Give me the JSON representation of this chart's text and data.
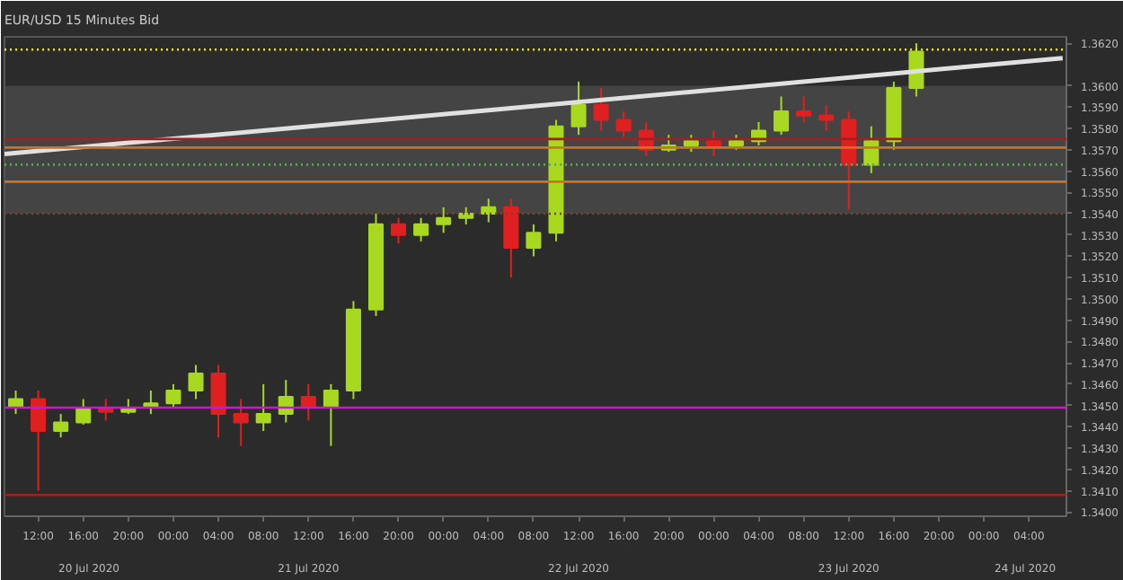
{
  "chart_data": {
    "type": "candlestick",
    "title": "EUR/USD 15 Minutes Bid",
    "x": [
      "2020-07-20T10:00",
      "2020-07-20T12:00",
      "2020-07-20T14:00",
      "2020-07-20T16:00",
      "2020-07-20T18:00",
      "2020-07-20T20:00",
      "2020-07-20T22:00",
      "2020-07-21T00:00",
      "2020-07-21T02:00",
      "2020-07-21T04:00",
      "2020-07-21T06:00",
      "2020-07-21T08:00",
      "2020-07-21T10:00",
      "2020-07-21T12:00",
      "2020-07-21T14:00",
      "2020-07-21T16:00",
      "2020-07-21T18:00",
      "2020-07-21T20:00",
      "2020-07-21T22:00",
      "2020-07-22T00:00",
      "2020-07-22T02:00",
      "2020-07-22T04:00",
      "2020-07-22T06:00",
      "2020-07-22T08:00",
      "2020-07-22T10:00",
      "2020-07-22T12:00",
      "2020-07-22T14:00",
      "2020-07-22T16:00",
      "2020-07-22T18:00",
      "2020-07-22T20:00",
      "2020-07-22T22:00",
      "2020-07-23T00:00",
      "2020-07-23T02:00",
      "2020-07-23T04:00",
      "2020-07-23T06:00",
      "2020-07-23T08:00",
      "2020-07-23T10:00",
      "2020-07-23T12:00",
      "2020-07-23T14:00",
      "2020-07-23T16:00",
      "2020-07-23T18:00"
    ],
    "ohlc": [
      [
        1.3449,
        1.3457,
        1.3446,
        1.3453
      ],
      [
        1.3453,
        1.3457,
        1.341,
        1.3438
      ],
      [
        1.3438,
        1.3446,
        1.3435,
        1.3442
      ],
      [
        1.3442,
        1.3453,
        1.3441,
        1.3449
      ],
      [
        1.3449,
        1.3453,
        1.3443,
        1.3447
      ],
      [
        1.3447,
        1.3453,
        1.3446,
        1.3449
      ],
      [
        1.3449,
        1.3457,
        1.3446,
        1.3451
      ],
      [
        1.3451,
        1.346,
        1.3449,
        1.3457
      ],
      [
        1.3457,
        1.3469,
        1.3453,
        1.3465
      ],
      [
        1.3465,
        1.3469,
        1.3435,
        1.3446
      ],
      [
        1.3446,
        1.3453,
        1.3431,
        1.3442
      ],
      [
        1.3442,
        1.346,
        1.3438,
        1.3446
      ],
      [
        1.3446,
        1.3462,
        1.3442,
        1.3454
      ],
      [
        1.3454,
        1.346,
        1.3443,
        1.3449
      ],
      [
        1.3449,
        1.346,
        1.3431,
        1.3457
      ],
      [
        1.3457,
        1.3499,
        1.3453,
        1.3495
      ],
      [
        1.3495,
        1.354,
        1.3492,
        1.3535
      ],
      [
        1.3535,
        1.3538,
        1.3526,
        1.353
      ],
      [
        1.353,
        1.3538,
        1.3527,
        1.3535
      ],
      [
        1.3535,
        1.3543,
        1.3531,
        1.3538
      ],
      [
        1.3538,
        1.3543,
        1.3535,
        1.354
      ],
      [
        1.354,
        1.3547,
        1.3536,
        1.3543
      ],
      [
        1.3543,
        1.3547,
        1.351,
        1.3524
      ],
      [
        1.3524,
        1.3535,
        1.352,
        1.3531
      ],
      [
        1.3531,
        1.3584,
        1.3527,
        1.3581
      ],
      [
        1.3581,
        1.3602,
        1.3577,
        1.3591
      ],
      [
        1.3591,
        1.3599,
        1.3579,
        1.3584
      ],
      [
        1.3584,
        1.3588,
        1.3576,
        1.3579
      ],
      [
        1.3579,
        1.3583,
        1.3567,
        1.357
      ],
      [
        1.357,
        1.3577,
        1.3569,
        1.3572
      ],
      [
        1.3572,
        1.3577,
        1.3569,
        1.3574
      ],
      [
        1.3574,
        1.3579,
        1.3567,
        1.3572
      ],
      [
        1.3572,
        1.3577,
        1.357,
        1.3574
      ],
      [
        1.3574,
        1.3583,
        1.3572,
        1.3579
      ],
      [
        1.3579,
        1.3595,
        1.3577,
        1.3588
      ],
      [
        1.3588,
        1.3595,
        1.3583,
        1.3586
      ],
      [
        1.3586,
        1.3591,
        1.3579,
        1.3584
      ],
      [
        1.3584,
        1.3588,
        1.3542,
        1.3563
      ],
      [
        1.3563,
        1.3581,
        1.3559,
        1.3574
      ],
      [
        1.3574,
        1.3602,
        1.357,
        1.3599
      ],
      [
        1.3599,
        1.362,
        1.3595,
        1.3616
      ]
    ],
    "colors": [
      "#a8d820",
      "#e02020",
      "#a8d820",
      "#a8d820",
      "#e02020",
      "#a8d820",
      "#a8d820",
      "#a8d820",
      "#a8d820",
      "#e02020",
      "#e02020",
      "#a8d820",
      "#a8d820",
      "#e02020",
      "#a8d820",
      "#a8d820",
      "#a8d820",
      "#e02020",
      "#a8d820",
      "#a8d820",
      "#a8d820",
      "#a8d820",
      "#e02020",
      "#a8d820",
      "#a8d820",
      "#a8d820",
      "#e02020",
      "#e02020",
      "#e02020",
      "#a8d820",
      "#a8d820",
      "#e02020",
      "#a8d820",
      "#a8d820",
      "#a8d820",
      "#e02020",
      "#e02020",
      "#e02020",
      "#a8d820",
      "#a8d820",
      "#a8d820"
    ],
    "series": [
      {
        "type": "line",
        "color": "#e0e0e0",
        "x": [
          "2020-07-20T09:00",
          "2020-07-24T07:00"
        ],
        "values": [
          1.3568,
          1.3613
        ]
      }
    ],
    "xlim": [
      "2020-07-20T09:00",
      "2020-07-24T07:20"
    ],
    "ylim": [
      1.3398,
      1.3623
    ],
    "xticks": [
      {
        "value": "2020-07-20T12:00",
        "label": "12:00"
      },
      {
        "value": "2020-07-20T16:00",
        "label": "16:00"
      },
      {
        "value": "2020-07-20T20:00",
        "label": "20:00"
      },
      {
        "value": "2020-07-21T00:00",
        "label": "00:00"
      },
      {
        "value": "2020-07-21T04:00",
        "label": "04:00"
      },
      {
        "value": "2020-07-21T08:00",
        "label": "08:00"
      },
      {
        "value": "2020-07-21T12:00",
        "label": "12:00"
      },
      {
        "value": "2020-07-21T16:00",
        "label": "16:00"
      },
      {
        "value": "2020-07-21T20:00",
        "label": "20:00"
      },
      {
        "value": "2020-07-22T00:00",
        "label": "00:00"
      },
      {
        "value": "2020-07-22T04:00",
        "label": "04:00"
      },
      {
        "value": "2020-07-22T08:00",
        "label": "08:00"
      },
      {
        "value": "2020-07-22T12:00",
        "label": "12:00"
      },
      {
        "value": "2020-07-22T16:00",
        "label": "16:00"
      },
      {
        "value": "2020-07-22T20:00",
        "label": "20:00"
      },
      {
        "value": "2020-07-23T00:00",
        "label": "00:00"
      },
      {
        "value": "2020-07-23T04:00",
        "label": "04:00"
      },
      {
        "value": "2020-07-23T08:00",
        "label": "08:00"
      },
      {
        "value": "2020-07-23T12:00",
        "label": "12:00"
      },
      {
        "value": "2020-07-23T16:00",
        "label": "16:00"
      },
      {
        "value": "2020-07-23T20:00",
        "label": "20:00"
      },
      {
        "value": "2020-07-24T00:00",
        "label": "00:00"
      },
      {
        "value": "2020-07-24T04:00",
        "label": "04:00"
      }
    ],
    "yticks": [
      {
        "value": 1.34,
        "label": "1.3400"
      },
      {
        "value": 1.341,
        "label": "1.3410"
      },
      {
        "value": 1.342,
        "label": "1.3420"
      },
      {
        "value": 1.343,
        "label": "1.3430"
      },
      {
        "value": 1.344,
        "label": "1.3440"
      },
      {
        "value": 1.345,
        "label": "1.3450"
      },
      {
        "value": 1.346,
        "label": "1.3460"
      },
      {
        "value": 1.347,
        "label": "1.3470"
      },
      {
        "value": 1.348,
        "label": "1.3480"
      },
      {
        "value": 1.349,
        "label": "1.3490"
      },
      {
        "value": 1.35,
        "label": "1.3500"
      },
      {
        "value": 1.351,
        "label": "1.3510"
      },
      {
        "value": 1.352,
        "label": "1.3520"
      },
      {
        "value": 1.353,
        "label": "1.3530"
      },
      {
        "value": 1.354,
        "label": "1.3540"
      },
      {
        "value": 1.355,
        "label": "1.3550"
      },
      {
        "value": 1.356,
        "label": "1.3560"
      },
      {
        "value": 1.357,
        "label": "1.3570"
      },
      {
        "value": 1.358,
        "label": "1.3580"
      },
      {
        "value": 1.359,
        "label": "1.3590"
      },
      {
        "value": 1.36,
        "label": "1.3600"
      },
      {
        "value": 1.362,
        "label": "1.3620"
      }
    ],
    "ref_lines": [
      {
        "axis": "y",
        "value": 1.3617,
        "color": "#e8e800",
        "line_style": "dotted"
      },
      {
        "axis": "y",
        "value": 1.3575,
        "color": "#a02020"
      },
      {
        "axis": "y",
        "value": 1.3571,
        "color": "#d07020"
      },
      {
        "axis": "y",
        "value": 1.3563,
        "color": "#60a060",
        "line_style": "dotted"
      },
      {
        "axis": "y",
        "value": 1.3555,
        "color": "#d07020"
      },
      {
        "axis": "y",
        "value": 1.354,
        "color": "#804030",
        "line_style": "dotted"
      },
      {
        "axis": "y",
        "value": 1.3449,
        "color": "#c020c0"
      },
      {
        "axis": "y",
        "value": 1.3408,
        "color": "#a02020"
      }
    ],
    "bands": [
      {
        "axis": "y",
        "from": 1.354,
        "to": 1.36,
        "color": "#555555"
      }
    ],
    "annotations": [
      "20 Jul 2020",
      "21 Jul 2020",
      "22 Jul 2020",
      "23 Jul 2020",
      "24 Jul 2020"
    ],
    "grid": false
  }
}
